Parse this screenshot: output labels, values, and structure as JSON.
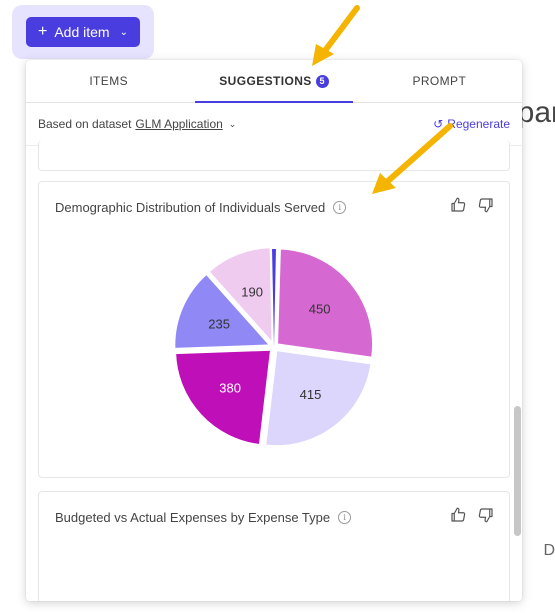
{
  "add_button": {
    "label": "Add item",
    "plus_icon": "plus-icon",
    "chevron_icon": "chevron-down-icon"
  },
  "tabs": [
    {
      "label": "ITEMS",
      "active": false
    },
    {
      "label": "SUGGESTIONS",
      "active": true,
      "badge": "5"
    },
    {
      "label": "PROMPT",
      "active": false
    }
  ],
  "dataset": {
    "prefix": "Based on dataset",
    "name": "GLM Application",
    "regenerate_label": "Regenerate"
  },
  "cards": [
    {
      "title": "Demographic Distribution of Individuals Served",
      "chart_data": {
        "type": "pie",
        "values": [
          450,
          415,
          380,
          235,
          190
        ],
        "colors": [
          "#d668d2",
          "#dcd6fc",
          "#bf0fb8",
          "#9088f5",
          "#efcbf0"
        ],
        "label_colors": [
          "#333333",
          "#333333",
          "#ffffff",
          "#333333",
          "#333333"
        ],
        "labels": [
          "450",
          "415",
          "380",
          "235",
          "190"
        ],
        "small_slice_color": "#4a3de0"
      }
    },
    {
      "title": "Budgeted vs Actual Expenses by Expense Type"
    }
  ],
  "background": {
    "fragment_top": "par",
    "fragment_bottom": "D"
  },
  "colors": {
    "accent": "#4a3de0",
    "arrow": "#f5b400"
  }
}
